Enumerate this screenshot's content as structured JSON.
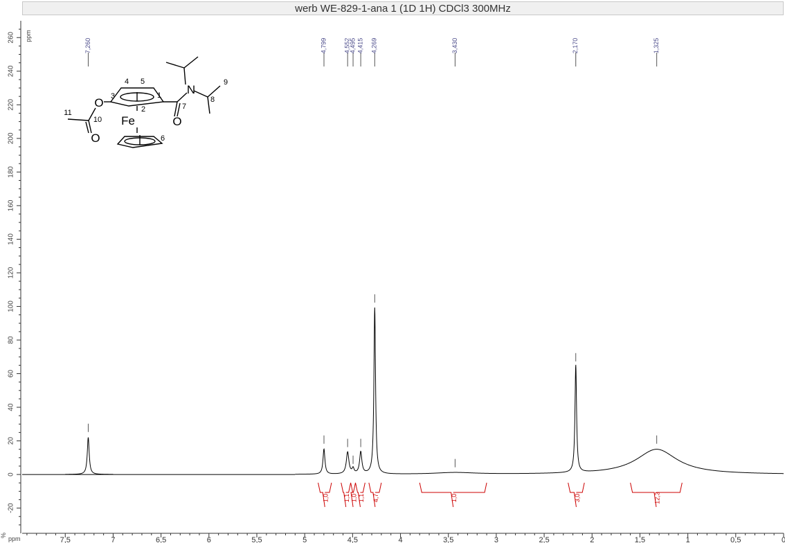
{
  "title": "werb WE-829-1-ana 1 (1D 1H) CDCl3 300MHz",
  "chart_data": {
    "type": "line",
    "title": "werb WE-829-1-ana 1 (1D 1H) CDCl3 300MHz",
    "xlabel": "ppm",
    "ylabel": "%",
    "y_axis_unit_top": "ppm",
    "xlim": [
      7.95,
      0.0
    ],
    "ylim": [
      -35,
      270
    ],
    "x_reversed": true,
    "x_ticks": [
      "7,5",
      "7",
      "6,5",
      "6",
      "5,5",
      "5",
      "4,5",
      "4",
      "3,5",
      "3",
      "2,5",
      "2",
      "1,5",
      "1",
      "0,5",
      "0"
    ],
    "x_tick_values": [
      7.5,
      7.0,
      6.5,
      6.0,
      5.5,
      5.0,
      4.5,
      4.0,
      3.5,
      3.0,
      2.5,
      2.0,
      1.5,
      1.0,
      0.5,
      0.0
    ],
    "y_ticks": [
      "260",
      "240",
      "220",
      "200",
      "180",
      "160",
      "140",
      "120",
      "100",
      "80",
      "60",
      "40",
      "20",
      "0",
      "-20"
    ],
    "y_tick_values": [
      260,
      240,
      220,
      200,
      180,
      160,
      140,
      120,
      100,
      80,
      60,
      40,
      20,
      0,
      -20
    ],
    "peaks": [
      {
        "ppm": 7.26,
        "label": "7,260",
        "height": 22,
        "width": 0.012
      },
      {
        "ppm": 4.799,
        "label": "4,799",
        "height": 15,
        "width": 0.012
      },
      {
        "ppm": 4.552,
        "label": "4,552",
        "height": 13,
        "width": 0.016
      },
      {
        "ppm": 4.495,
        "label": "4,495",
        "height": 3,
        "width": 0.012
      },
      {
        "ppm": 4.415,
        "label": "4,415",
        "height": 13,
        "width": 0.014
      },
      {
        "ppm": 4.269,
        "label": "4,269",
        "height": 99,
        "width": 0.01
      },
      {
        "ppm": 3.43,
        "label": "3,430",
        "height": 1,
        "width": 0.25
      },
      {
        "ppm": 2.17,
        "label": "2,170",
        "height": 64,
        "width": 0.01
      },
      {
        "ppm": 1.325,
        "label": "1,325",
        "height": 15,
        "width": 0.26
      }
    ],
    "integrals": [
      {
        "from": 4.86,
        "to": 4.72,
        "label": "1,0"
      },
      {
        "from": 4.62,
        "to": 4.52,
        "label": "1,1"
      },
      {
        "from": 4.52,
        "to": 4.47,
        "label": "1,0"
      },
      {
        "from": 4.47,
        "to": 4.37,
        "label": "1,1"
      },
      {
        "from": 4.33,
        "to": 4.2,
        "label": "4,7"
      },
      {
        "from": 3.8,
        "to": 3.1,
        "label": "1,0"
      },
      {
        "from": 2.25,
        "to": 2.08,
        "label": "3,0"
      },
      {
        "from": 1.6,
        "to": 1.06,
        "label": "12,3"
      }
    ],
    "spectrum_range": [
      5.1,
      0.0
    ],
    "colors": {
      "spectrum": "#000000",
      "integral": "#cc0000",
      "peak_label": "#4b4b8a",
      "axis": "#333333"
    }
  },
  "structure": {
    "atom_labels": [
      "O",
      "N",
      "O",
      "O",
      "Fe"
    ],
    "numbers": [
      "1",
      "2",
      "3",
      "4",
      "5",
      "6",
      "7",
      "8",
      "9",
      "10",
      "11"
    ]
  }
}
